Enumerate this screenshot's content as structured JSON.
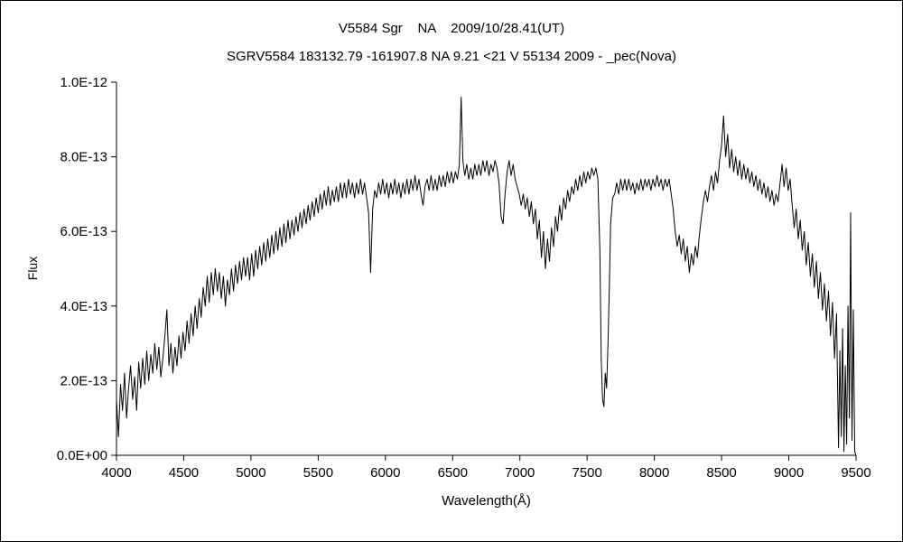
{
  "chart_data": {
    "type": "line",
    "title_line1": "V5584 Sgr    NA    2009/10/28.41(UT)",
    "title_line2": "SGRV5584 183132.79 -161907.8 NA 9.21 <21 V 55134 2009 - _pec(Nova)",
    "xlabel": "Wavelength(Å)",
    "ylabel": "Flux",
    "xlim": [
      4000,
      9500
    ],
    "ylim": [
      0,
      10
    ],
    "y_unit_factor": "1e-13",
    "grid": false,
    "legend": false,
    "line_color": "#000000",
    "background": "#ffffff",
    "x_ticks": [
      4000,
      4500,
      5000,
      5500,
      6000,
      6500,
      7000,
      7500,
      8000,
      8500,
      9000,
      9500
    ],
    "y_ticks": [
      {
        "v": 0,
        "label": "0.0E+00"
      },
      {
        "v": 2,
        "label": "2.0E-13"
      },
      {
        "v": 4,
        "label": "4.0E-13"
      },
      {
        "v": 6,
        "label": "6.0E-13"
      },
      {
        "v": 8,
        "label": "8.0E-13"
      },
      {
        "v": 10,
        "label": "1.0E-12"
      }
    ],
    "points": [
      [
        4000,
        1.5
      ],
      [
        4015,
        0.5
      ],
      [
        4030,
        1.9
      ],
      [
        4045,
        1.2
      ],
      [
        4060,
        2.2
      ],
      [
        4075,
        1.0
      ],
      [
        4090,
        1.8
      ],
      [
        4105,
        2.4
      ],
      [
        4120,
        1.5
      ],
      [
        4135,
        2.1
      ],
      [
        4150,
        1.2
      ],
      [
        4165,
        2.5
      ],
      [
        4180,
        1.8
      ],
      [
        4195,
        2.6
      ],
      [
        4210,
        1.9
      ],
      [
        4225,
        2.8
      ],
      [
        4240,
        2.0
      ],
      [
        4255,
        2.7
      ],
      [
        4270,
        2.2
      ],
      [
        4285,
        3.0
      ],
      [
        4300,
        2.3
      ],
      [
        4315,
        2.9
      ],
      [
        4330,
        2.1
      ],
      [
        4345,
        2.6
      ],
      [
        4360,
        3.2
      ],
      [
        4375,
        3.9
      ],
      [
        4390,
        2.4
      ],
      [
        4405,
        3.0
      ],
      [
        4420,
        2.2
      ],
      [
        4435,
        2.9
      ],
      [
        4450,
        2.4
      ],
      [
        4465,
        3.2
      ],
      [
        4480,
        2.6
      ],
      [
        4495,
        3.3
      ],
      [
        4510,
        2.8
      ],
      [
        4525,
        3.6
      ],
      [
        4540,
        3.0
      ],
      [
        4555,
        3.8
      ],
      [
        4570,
        3.2
      ],
      [
        4585,
        4.0
      ],
      [
        4600,
        3.4
      ],
      [
        4615,
        4.2
      ],
      [
        4630,
        3.7
      ],
      [
        4645,
        4.5
      ],
      [
        4660,
        4.0
      ],
      [
        4675,
        4.8
      ],
      [
        4690,
        4.1
      ],
      [
        4705,
        4.9
      ],
      [
        4720,
        4.3
      ],
      [
        4735,
        5.0
      ],
      [
        4750,
        4.4
      ],
      [
        4765,
        4.9
      ],
      [
        4780,
        4.2
      ],
      [
        4795,
        4.8
      ],
      [
        4810,
        4.0
      ],
      [
        4825,
        4.7
      ],
      [
        4840,
        4.3
      ],
      [
        4855,
        5.0
      ],
      [
        4870,
        4.4
      ],
      [
        4885,
        5.1
      ],
      [
        4900,
        4.6
      ],
      [
        4915,
        5.2
      ],
      [
        4930,
        4.7
      ],
      [
        4945,
        5.3
      ],
      [
        4960,
        4.8
      ],
      [
        4975,
        5.3
      ],
      [
        4990,
        4.7
      ],
      [
        5005,
        5.4
      ],
      [
        5020,
        4.8
      ],
      [
        5035,
        5.5
      ],
      [
        5050,
        5.0
      ],
      [
        5065,
        5.6
      ],
      [
        5080,
        5.1
      ],
      [
        5095,
        5.7
      ],
      [
        5110,
        5.2
      ],
      [
        5125,
        5.8
      ],
      [
        5140,
        5.3
      ],
      [
        5155,
        5.9
      ],
      [
        5170,
        5.4
      ],
      [
        5185,
        6.0
      ],
      [
        5200,
        5.5
      ],
      [
        5215,
        6.1
      ],
      [
        5230,
        5.6
      ],
      [
        5245,
        6.2
      ],
      [
        5260,
        5.7
      ],
      [
        5275,
        6.3
      ],
      [
        5290,
        5.8
      ],
      [
        5305,
        6.3
      ],
      [
        5320,
        5.9
      ],
      [
        5335,
        6.4
      ],
      [
        5350,
        6.0
      ],
      [
        5365,
        6.5
      ],
      [
        5380,
        6.1
      ],
      [
        5395,
        6.6
      ],
      [
        5410,
        6.2
      ],
      [
        5425,
        6.7
      ],
      [
        5440,
        6.3
      ],
      [
        5455,
        6.8
      ],
      [
        5470,
        6.4
      ],
      [
        5485,
        6.9
      ],
      [
        5500,
        6.5
      ],
      [
        5515,
        7.0
      ],
      [
        5530,
        6.6
      ],
      [
        5545,
        7.1
      ],
      [
        5560,
        6.7
      ],
      [
        5575,
        7.2
      ],
      [
        5590,
        6.7
      ],
      [
        5605,
        7.1
      ],
      [
        5620,
        6.8
      ],
      [
        5635,
        7.2
      ],
      [
        5650,
        6.8
      ],
      [
        5665,
        7.3
      ],
      [
        5680,
        6.9
      ],
      [
        5695,
        7.3
      ],
      [
        5710,
        6.9
      ],
      [
        5725,
        7.4
      ],
      [
        5740,
        7.0
      ],
      [
        5755,
        7.3
      ],
      [
        5770,
        6.9
      ],
      [
        5785,
        7.3
      ],
      [
        5800,
        7.0
      ],
      [
        5815,
        7.4
      ],
      [
        5830,
        7.0
      ],
      [
        5845,
        7.3
      ],
      [
        5860,
        6.9
      ],
      [
        5875,
        6.5
      ],
      [
        5890,
        4.9
      ],
      [
        5905,
        6.6
      ],
      [
        5920,
        7.1
      ],
      [
        5935,
        6.9
      ],
      [
        5950,
        7.3
      ],
      [
        5965,
        7.0
      ],
      [
        5980,
        7.4
      ],
      [
        5995,
        7.0
      ],
      [
        6010,
        7.3
      ],
      [
        6025,
        6.9
      ],
      [
        6040,
        7.3
      ],
      [
        6055,
        7.0
      ],
      [
        6070,
        7.4
      ],
      [
        6085,
        7.0
      ],
      [
        6100,
        7.3
      ],
      [
        6115,
        6.9
      ],
      [
        6130,
        7.3
      ],
      [
        6145,
        7.0
      ],
      [
        6160,
        7.4
      ],
      [
        6175,
        7.0
      ],
      [
        6190,
        7.4
      ],
      [
        6205,
        7.1
      ],
      [
        6220,
        7.5
      ],
      [
        6235,
        7.1
      ],
      [
        6250,
        7.4
      ],
      [
        6265,
        7.0
      ],
      [
        6280,
        6.7
      ],
      [
        6295,
        7.2
      ],
      [
        6310,
        7.4
      ],
      [
        6325,
        7.1
      ],
      [
        6340,
        7.5
      ],
      [
        6355,
        7.1
      ],
      [
        6370,
        7.4
      ],
      [
        6385,
        7.1
      ],
      [
        6400,
        7.5
      ],
      [
        6415,
        7.2
      ],
      [
        6430,
        7.5
      ],
      [
        6445,
        7.2
      ],
      [
        6460,
        7.6
      ],
      [
        6475,
        7.3
      ],
      [
        6490,
        7.6
      ],
      [
        6505,
        7.3
      ],
      [
        6520,
        7.6
      ],
      [
        6535,
        7.4
      ],
      [
        6550,
        7.8
      ],
      [
        6563,
        9.6
      ],
      [
        6576,
        7.9
      ],
      [
        6590,
        7.5
      ],
      [
        6605,
        7.8
      ],
      [
        6620,
        7.4
      ],
      [
        6635,
        7.7
      ],
      [
        6650,
        7.4
      ],
      [
        6665,
        7.8
      ],
      [
        6680,
        7.5
      ],
      [
        6695,
        7.8
      ],
      [
        6710,
        7.5
      ],
      [
        6725,
        7.9
      ],
      [
        6740,
        7.6
      ],
      [
        6755,
        7.9
      ],
      [
        6770,
        7.5
      ],
      [
        6785,
        7.8
      ],
      [
        6800,
        7.6
      ],
      [
        6815,
        7.9
      ],
      [
        6830,
        7.7
      ],
      [
        6845,
        7.3
      ],
      [
        6860,
        6.4
      ],
      [
        6875,
        6.2
      ],
      [
        6890,
        7.0
      ],
      [
        6905,
        7.6
      ],
      [
        6920,
        7.9
      ],
      [
        6935,
        7.5
      ],
      [
        6950,
        7.8
      ],
      [
        6965,
        7.4
      ],
      [
        6980,
        7.2
      ],
      [
        6995,
        7.0
      ],
      [
        7010,
        6.7
      ],
      [
        7025,
        7.0
      ],
      [
        7040,
        6.6
      ],
      [
        7055,
        6.9
      ],
      [
        7070,
        6.4
      ],
      [
        7085,
        6.8
      ],
      [
        7100,
        6.2
      ],
      [
        7115,
        6.6
      ],
      [
        7130,
        5.8
      ],
      [
        7145,
        6.3
      ],
      [
        7160,
        5.3
      ],
      [
        7175,
        6.0
      ],
      [
        7190,
        5.0
      ],
      [
        7205,
        5.8
      ],
      [
        7220,
        5.2
      ],
      [
        7235,
        6.1
      ],
      [
        7250,
        5.6
      ],
      [
        7265,
        6.4
      ],
      [
        7280,
        6.0
      ],
      [
        7295,
        6.7
      ],
      [
        7310,
        6.3
      ],
      [
        7325,
        6.9
      ],
      [
        7340,
        6.6
      ],
      [
        7355,
        7.1
      ],
      [
        7370,
        6.8
      ],
      [
        7385,
        7.2
      ],
      [
        7400,
        7.0
      ],
      [
        7415,
        7.4
      ],
      [
        7430,
        7.1
      ],
      [
        7445,
        7.5
      ],
      [
        7460,
        7.2
      ],
      [
        7475,
        7.6
      ],
      [
        7490,
        7.3
      ],
      [
        7505,
        7.6
      ],
      [
        7520,
        7.4
      ],
      [
        7535,
        7.7
      ],
      [
        7550,
        7.5
      ],
      [
        7565,
        7.7
      ],
      [
        7580,
        7.4
      ],
      [
        7595,
        5.5
      ],
      [
        7605,
        2.6
      ],
      [
        7615,
        1.5
      ],
      [
        7625,
        1.3
      ],
      [
        7635,
        2.2
      ],
      [
        7645,
        1.8
      ],
      [
        7655,
        3.0
      ],
      [
        7665,
        4.5
      ],
      [
        7675,
        6.2
      ],
      [
        7690,
        6.9
      ],
      [
        7705,
        7.0
      ],
      [
        7720,
        7.3
      ],
      [
        7735,
        7.0
      ],
      [
        7750,
        7.4
      ],
      [
        7765,
        7.1
      ],
      [
        7780,
        7.4
      ],
      [
        7795,
        7.1
      ],
      [
        7810,
        7.4
      ],
      [
        7825,
        7.1
      ],
      [
        7840,
        7.3
      ],
      [
        7855,
        7.0
      ],
      [
        7870,
        7.3
      ],
      [
        7885,
        7.1
      ],
      [
        7900,
        7.4
      ],
      [
        7915,
        7.1
      ],
      [
        7930,
        7.4
      ],
      [
        7945,
        7.2
      ],
      [
        7960,
        7.4
      ],
      [
        7975,
        7.1
      ],
      [
        7990,
        7.4
      ],
      [
        8005,
        7.2
      ],
      [
        8020,
        7.5
      ],
      [
        8035,
        7.2
      ],
      [
        8050,
        7.4
      ],
      [
        8065,
        7.1
      ],
      [
        8080,
        7.4
      ],
      [
        8095,
        7.2
      ],
      [
        8110,
        7.4
      ],
      [
        8125,
        7.0
      ],
      [
        8140,
        6.6
      ],
      [
        8155,
        6.0
      ],
      [
        8170,
        5.6
      ],
      [
        8185,
        5.9
      ],
      [
        8200,
        5.4
      ],
      [
        8215,
        5.8
      ],
      [
        8230,
        5.2
      ],
      [
        8245,
        5.6
      ],
      [
        8260,
        4.9
      ],
      [
        8275,
        5.4
      ],
      [
        8290,
        5.1
      ],
      [
        8305,
        5.6
      ],
      [
        8320,
        5.3
      ],
      [
        8335,
        5.9
      ],
      [
        8350,
        6.4
      ],
      [
        8365,
        6.8
      ],
      [
        8380,
        7.1
      ],
      [
        8395,
        6.8
      ],
      [
        8410,
        7.2
      ],
      [
        8425,
        7.5
      ],
      [
        8440,
        7.1
      ],
      [
        8455,
        7.6
      ],
      [
        8470,
        7.3
      ],
      [
        8485,
        7.9
      ],
      [
        8500,
        8.3
      ],
      [
        8515,
        9.1
      ],
      [
        8530,
        8.0
      ],
      [
        8545,
        8.6
      ],
      [
        8560,
        7.7
      ],
      [
        8575,
        8.2
      ],
      [
        8590,
        7.6
      ],
      [
        8605,
        8.0
      ],
      [
        8620,
        7.5
      ],
      [
        8635,
        7.9
      ],
      [
        8650,
        7.4
      ],
      [
        8665,
        7.8
      ],
      [
        8680,
        7.4
      ],
      [
        8695,
        7.7
      ],
      [
        8710,
        7.3
      ],
      [
        8725,
        7.6
      ],
      [
        8740,
        7.2
      ],
      [
        8755,
        7.5
      ],
      [
        8770,
        7.1
      ],
      [
        8785,
        7.4
      ],
      [
        8800,
        7.0
      ],
      [
        8815,
        7.3
      ],
      [
        8830,
        6.9
      ],
      [
        8845,
        7.2
      ],
      [
        8860,
        6.8
      ],
      [
        8875,
        7.1
      ],
      [
        8890,
        6.7
      ],
      [
        8905,
        7.0
      ],
      [
        8920,
        6.8
      ],
      [
        8935,
        7.3
      ],
      [
        8950,
        7.8
      ],
      [
        8965,
        7.2
      ],
      [
        8980,
        7.7
      ],
      [
        8995,
        7.1
      ],
      [
        9010,
        7.4
      ],
      [
        9025,
        6.7
      ],
      [
        9040,
        6.1
      ],
      [
        9055,
        6.6
      ],
      [
        9070,
        5.8
      ],
      [
        9085,
        6.3
      ],
      [
        9100,
        5.5
      ],
      [
        9115,
        6.0
      ],
      [
        9130,
        5.1
      ],
      [
        9145,
        5.7
      ],
      [
        9160,
        4.8
      ],
      [
        9175,
        5.4
      ],
      [
        9190,
        4.5
      ],
      [
        9205,
        5.2
      ],
      [
        9220,
        4.2
      ],
      [
        9235,
        4.9
      ],
      [
        9250,
        3.9
      ],
      [
        9265,
        4.6
      ],
      [
        9280,
        3.6
      ],
      [
        9295,
        4.4
      ],
      [
        9310,
        3.2
      ],
      [
        9325,
        4.1
      ],
      [
        9340,
        2.6
      ],
      [
        9355,
        3.8
      ],
      [
        9370,
        0.2
      ],
      [
        9380,
        2.8
      ],
      [
        9390,
        0.5
      ],
      [
        9400,
        3.4
      ],
      [
        9410,
        0.1
      ],
      [
        9420,
        2.4
      ],
      [
        9430,
        0.3
      ],
      [
        9440,
        4.0
      ],
      [
        9450,
        1.0
      ],
      [
        9460,
        6.5
      ],
      [
        9470,
        0.4
      ],
      [
        9480,
        3.9
      ],
      [
        9490,
        0.1
      ],
      [
        9500,
        0.0
      ]
    ]
  }
}
